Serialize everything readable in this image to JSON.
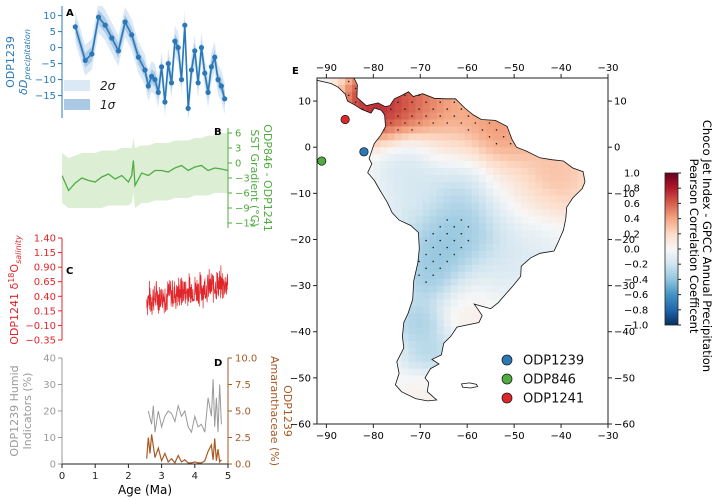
{
  "colors": {
    "blue": "#2a78b8",
    "green": "#4fac3f",
    "red": "#e0262a",
    "gray": "#9a9a9a",
    "brown": "#a85a25",
    "band_blue": "#c9def0",
    "band_green": "#dcefd5"
  },
  "chart_data": [
    {
      "type": "line",
      "panel": "A",
      "ylabel_line1": "ODP1239",
      "ylabel_line2": "δD",
      "ylabel_sub": "precipitation",
      "xlim": [
        0,
        5
      ],
      "ylim": [
        -22,
        13
      ],
      "yticks": [
        -15,
        -10,
        -5,
        0,
        5,
        10
      ],
      "legend": [
        "2σ",
        "1σ"
      ],
      "legend_placement": "lower-left",
      "x": [
        0.4,
        0.7,
        0.9,
        1.1,
        1.3,
        1.5,
        1.7,
        1.9,
        2.1,
        2.3,
        2.5,
        2.6,
        2.7,
        2.8,
        2.9,
        3.0,
        3.1,
        3.2,
        3.3,
        3.4,
        3.5,
        3.6,
        3.7,
        3.8,
        3.9,
        4.0,
        4.1,
        4.2,
        4.3,
        4.4,
        4.5,
        4.6,
        4.7,
        4.8,
        4.9
      ],
      "values": [
        6.5,
        -4,
        -2,
        9.5,
        7,
        3,
        -1,
        8,
        4,
        -3,
        -7,
        -12,
        -9,
        -10,
        -14,
        -6,
        -17,
        -5,
        -11,
        2,
        0,
        -10,
        7,
        -19,
        -7,
        -1,
        -11,
        0,
        -8,
        -14,
        -6,
        -3,
        -10,
        -12,
        -16
      ],
      "band_1sigma": 2.3,
      "band_2sigma": 4.8
    },
    {
      "type": "line",
      "panel": "B",
      "ylabel_line1": "ODP846 - ODP1241",
      "ylabel_line2": "SST Gradient (°C)",
      "xlim": [
        0,
        5
      ],
      "ylim": [
        -13,
        7
      ],
      "yticks": [
        -12,
        -9,
        -6,
        -3,
        0,
        3,
        6
      ],
      "x": [
        0,
        0.2,
        0.4,
        0.6,
        0.8,
        1.0,
        1.2,
        1.4,
        1.6,
        1.8,
        2.0,
        2.1,
        2.15,
        2.2,
        2.4,
        2.6,
        2.8,
        3.0,
        3.2,
        3.4,
        3.6,
        3.8,
        4.0,
        4.2,
        4.4,
        4.6,
        4.8,
        5.0
      ],
      "values": [
        -2.5,
        -5.5,
        -4,
        -3,
        -3.5,
        -3.8,
        -2.8,
        -2.2,
        -3.2,
        -2.5,
        -3.8,
        -2.5,
        0.5,
        -4.5,
        -2,
        -2.5,
        -1.5,
        -1.5,
        -1.8,
        -1,
        -0.5,
        -1.5,
        -0.8,
        -0.5,
        -1.5,
        -1,
        -1.2,
        -1.5
      ],
      "band_upper": [
        2,
        1,
        1.5,
        2,
        2,
        2,
        2.5,
        2.5,
        2.5,
        3,
        3,
        3,
        5,
        3,
        3.5,
        3.5,
        4,
        4,
        4,
        4.5,
        4.5,
        4.5,
        5,
        5,
        5.5,
        5.5,
        6,
        6
      ],
      "band_lower": [
        -8,
        -9,
        -9,
        -9,
        -9,
        -9,
        -9,
        -8.5,
        -8.5,
        -8.5,
        -8.5,
        -8,
        -6,
        -9,
        -8,
        -8,
        -7.5,
        -7.5,
        -7.5,
        -7,
        -7,
        -7,
        -6.5,
        -6.5,
        -6.5,
        -6,
        -6,
        -6
      ]
    },
    {
      "type": "line",
      "panel": "C",
      "ylabel_line1": "ODP1241 δ",
      "ylabel_sup": "18",
      "ylabel_tail": "O",
      "ylabel_sub": "salinity",
      "xlim": [
        0,
        5
      ],
      "ylim": [
        -0.35,
        1.4
      ],
      "yticks": [
        -0.35,
        -0.1,
        0.15,
        0.4,
        0.65,
        0.9,
        1.15,
        1.4
      ],
      "ytick_labels": [
        "−0.35",
        "−0.10",
        "0.15",
        "0.40",
        "0.65",
        "0.90",
        "1.15",
        "1.40"
      ],
      "x_start": 2.55,
      "x_end": 5.0,
      "mean_start": 0.35,
      "mean_end": 0.62,
      "noise_amplitude": 0.32
    },
    {
      "type": "line",
      "panel": "D",
      "ylabel_left_line1": "ODP1239 Humid",
      "ylabel_left_line2": "Indicators (%)",
      "ylabel_right_line1": "ODP1239",
      "ylabel_right_line2": "Amaranthaceae (%)",
      "xlabel": "Age (Ma)",
      "xlim": [
        0,
        5
      ],
      "xticks": [
        0,
        1,
        2,
        3,
        4,
        5
      ],
      "ylim_left": [
        0,
        40
      ],
      "yticks_left": [
        0,
        10,
        20,
        30,
        40
      ],
      "ylim_right": [
        0,
        10
      ],
      "yticks_right": [
        0,
        2.5,
        5,
        7.5,
        10
      ],
      "ytick_labels_right": [
        "0.0",
        "2.5",
        "5.0",
        "7.5",
        "10.0"
      ],
      "humid_x": [
        2.6,
        2.7,
        2.75,
        2.8,
        2.9,
        3.0,
        3.1,
        3.2,
        3.3,
        3.4,
        3.5,
        3.6,
        3.7,
        3.8,
        3.9,
        4.0,
        4.1,
        4.2,
        4.3,
        4.4,
        4.5,
        4.55,
        4.6,
        4.65,
        4.7,
        4.75,
        4.8
      ],
      "humid_values": [
        20,
        15,
        22,
        12,
        20,
        14,
        18,
        20,
        19,
        16,
        22,
        18,
        20,
        14,
        12,
        18,
        14,
        15,
        12,
        25,
        18,
        32,
        14,
        25,
        12,
        30,
        15
      ],
      "amaranth_x": [
        2.55,
        2.6,
        2.65,
        2.7,
        2.8,
        2.9,
        3.0,
        3.1,
        3.2,
        3.3,
        3.4,
        3.5,
        3.6,
        3.7,
        3.8,
        3.9,
        4.0,
        4.1,
        4.2,
        4.3,
        4.4,
        4.5,
        4.55,
        4.6,
        4.65,
        4.7,
        4.75,
        4.8
      ],
      "amaranth_values": [
        0.5,
        2.5,
        1,
        2.8,
        0.6,
        1.5,
        0.3,
        1,
        0.2,
        0.5,
        0.1,
        0.8,
        0.2,
        0.4,
        0.1,
        0.1,
        0.2,
        0.1,
        0.1,
        0.3,
        1.2,
        1.8,
        0.4,
        2.4,
        0.3,
        1.4,
        0.2,
        0.4
      ]
    },
    {
      "type": "heatmap",
      "panel": "E",
      "colorbar_label_line1": "Choco Jet Index - GPCC Annual Precipitation",
      "colorbar_label_line2": "Pearson Correlation Coefficent",
      "xlim": [
        -92,
        -30
      ],
      "ylim": [
        -60,
        15
      ],
      "xticks": [
        -90,
        -80,
        -70,
        -60,
        -50,
        -40,
        -30
      ],
      "yticks": [
        10,
        0,
        -10,
        -20,
        -30,
        -40,
        -50,
        -60
      ],
      "colorbar_range": [
        -1.0,
        1.0
      ],
      "colorbar_ticks": [
        "1.0",
        "0.8",
        "0.6",
        "0.4",
        "0.2",
        "0.0",
        "−0.2",
        "−0.4",
        "−0.6",
        "−0.8",
        "−1.0"
      ],
      "sites": [
        {
          "name": "ODP1239",
          "lon": -82,
          "lat": -1,
          "color": "#2a78b8"
        },
        {
          "name": "ODP846",
          "lon": -91,
          "lat": -3,
          "color": "#4fac3f"
        },
        {
          "name": "ODP1241",
          "lon": -86,
          "lat": 6,
          "color": "#e0262a"
        }
      ],
      "legend_placement": "lower-right",
      "regions": [
        {
          "lon": -80,
          "lat": 10,
          "r": 3.5,
          "v": 0.8
        },
        {
          "lon": -75,
          "lat": 8,
          "r": 4.5,
          "v": 0.75
        },
        {
          "lon": -70,
          "lat": 9,
          "r": 4,
          "v": 0.55
        },
        {
          "lon": -65,
          "lat": 7,
          "r": 4,
          "v": 0.4
        },
        {
          "lon": -57,
          "lat": 3,
          "r": 5,
          "v": 0.5
        },
        {
          "lon": -52,
          "lat": 1,
          "r": 4,
          "v": 0.45
        },
        {
          "lon": -64,
          "lat": 0,
          "r": 4,
          "v": 0.25
        },
        {
          "lon": -72,
          "lat": -2,
          "r": 4,
          "v": -0.2
        },
        {
          "lon": -62,
          "lat": -5,
          "r": 5,
          "v": -0.3
        },
        {
          "lon": -52,
          "lat": -6,
          "r": 4,
          "v": 0.15
        },
        {
          "lon": -43,
          "lat": -6,
          "r": 5,
          "v": 0.35
        },
        {
          "lon": -70,
          "lat": -10,
          "r": 4,
          "v": -0.15
        },
        {
          "lon": -56,
          "lat": -14,
          "r": 6,
          "v": -0.3
        },
        {
          "lon": -48,
          "lat": -12,
          "r": 5,
          "v": 0.2
        },
        {
          "lon": -62,
          "lat": -20,
          "r": 6,
          "v": -0.45
        },
        {
          "lon": -48,
          "lat": -20,
          "r": 5,
          "v": -0.15
        },
        {
          "lon": -66,
          "lat": -28,
          "r": 4,
          "v": -0.4
        },
        {
          "lon": -55,
          "lat": -27,
          "r": 4,
          "v": -0.1
        },
        {
          "lon": -60,
          "lat": -33,
          "r": 4,
          "v": 0.1
        },
        {
          "lon": -70,
          "lat": -38,
          "r": 3,
          "v": -0.35
        },
        {
          "lon": -68,
          "lat": -45,
          "r": 3,
          "v": -0.3
        },
        {
          "lon": -69,
          "lat": -52,
          "r": 2.5,
          "v": 0.05
        }
      ]
    }
  ]
}
